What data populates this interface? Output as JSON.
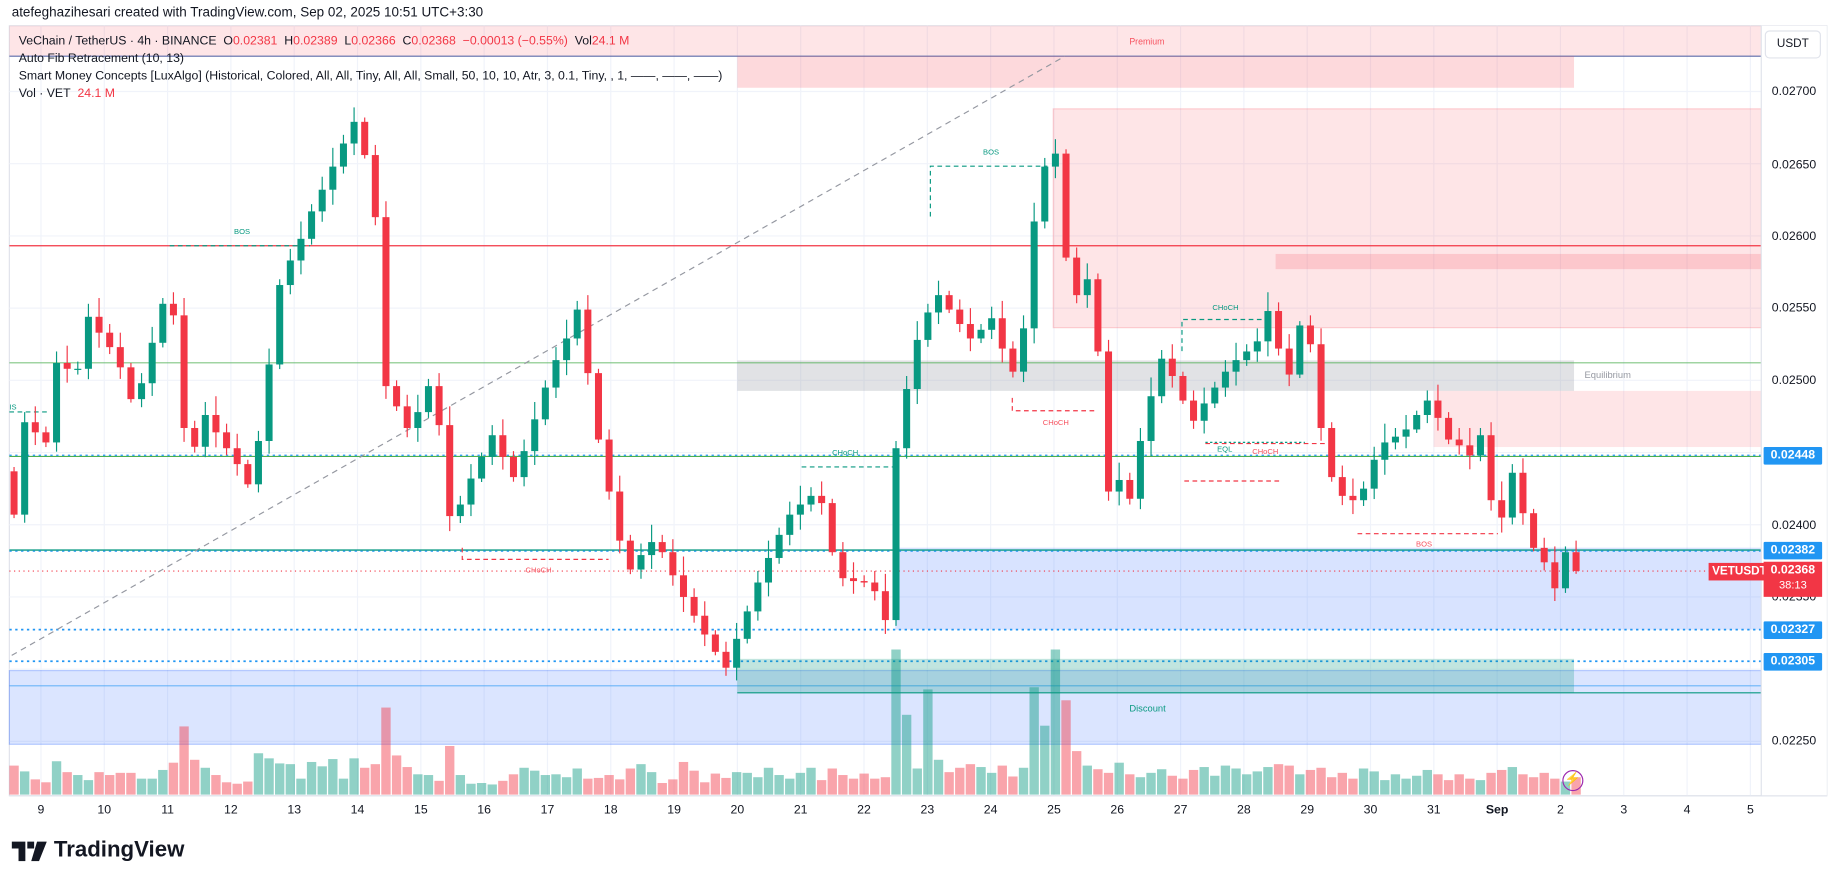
{
  "credit": "atefeghazihesari created with TradingView.com, Sep 02, 2025 10:51 UTC+3:30",
  "legend": {
    "symbol": "VeChain / TetherUS · 4h · BINANCE",
    "o_label": "O",
    "o": "0.02381",
    "h_label": "H",
    "h": "0.02389",
    "l_label": "L",
    "l": "0.02366",
    "c_label": "C",
    "c": "0.02368",
    "change": "−0.00013 (−0.55%)",
    "vol_label": "Vol",
    "vol": "24.1 M",
    "indicator1": "Auto Fib Retracement (10, 13)",
    "indicator2": "Smart Money Concepts [LuxAlgo] (Historical, Colored, All, All, Tiny, All, All, Small, 50, 10, 10, Atr, 3, 0.1, Tiny, , 1, ——, ——, ——)",
    "indicator3": "Vol · VET",
    "indicator3_value": "24.1 M"
  },
  "currency_button": "USDT",
  "annotations": {
    "premium": "Premium",
    "equilibrium": "Equilibrium",
    "discount": "Discount",
    "bos": "BOS",
    "choch": "CHoCH",
    "eql": "EQL",
    "partial_bos": "IS"
  },
  "price_axis": {
    "ticks": [
      "0.02700",
      "0.02650",
      "0.02600",
      "0.02550",
      "0.02500",
      "0.02400",
      "0.02350",
      "0.02250"
    ],
    "level_tags": [
      "0.02448",
      "0.02382",
      "0.02327",
      "0.02305"
    ],
    "symbol_tag": "VETUSDT",
    "current_price": "0.02368",
    "countdown": "38:13"
  },
  "time_axis": [
    "9",
    "10",
    "11",
    "12",
    "13",
    "14",
    "15",
    "16",
    "17",
    "18",
    "19",
    "20",
    "21",
    "22",
    "23",
    "24",
    "25",
    "26",
    "27",
    "28",
    "29",
    "30",
    "31",
    "Sep",
    "2",
    "3",
    "4",
    "5"
  ],
  "brand": "TradingView",
  "colors": {
    "up": "#089981",
    "down": "#f23645",
    "level": "#2196f3",
    "zone_premium": "#f7525f",
    "zone_discount": "#2962ff"
  },
  "chart_data": {
    "type": "candlestick",
    "title": "VeChain / TetherUS · 4h · BINANCE",
    "ylabel": "USDT",
    "ylim": [
      0.0222,
      0.0273
    ],
    "interval": "4h",
    "x_start": "Aug 9",
    "x_end": "Sep 2",
    "close": [
      0.02407,
      0.02471,
      0.02464,
      0.02457,
      0.02512,
      0.02508,
      0.02508,
      0.02544,
      0.02533,
      0.02523,
      0.02509,
      0.02487,
      0.02498,
      0.02526,
      0.02553,
      0.02545,
      0.02467,
      0.02454,
      0.02476,
      0.02464,
      0.02453,
      0.02442,
      0.02428,
      0.02458,
      0.02511,
      0.02566,
      0.02583,
      0.02598,
      0.02617,
      0.02632,
      0.02648,
      0.02664,
      0.02679,
      0.02656,
      0.02613,
      0.02496,
      0.02482,
      0.02467,
      0.02478,
      0.02496,
      0.02469,
      0.02406,
      0.02414,
      0.02432,
      0.02447,
      0.02462,
      0.02447,
      0.02433,
      0.02451,
      0.02473,
      0.02495,
      0.02514,
      0.02529,
      0.02549,
      0.02505,
      0.02459,
      0.02423,
      0.02389,
      0.02369,
      0.02379,
      0.02388,
      0.02381,
      0.02365,
      0.0235,
      0.02337,
      0.02324,
      0.02312,
      0.02301,
      0.02321,
      0.0234,
      0.0236,
      0.02377,
      0.02393,
      0.02407,
      0.02414,
      0.0242,
      0.02415,
      0.02381,
      0.02363,
      0.02361,
      0.0236,
      0.02354,
      0.02334,
      0.02453,
      0.02494,
      0.02528,
      0.02547,
      0.02559,
      0.02549,
      0.02539,
      0.02529,
      0.02535,
      0.02543,
      0.02522,
      0.02506,
      0.02536,
      0.0261,
      0.02648,
      0.02657,
      0.02585,
      0.02559,
      0.0257,
      0.0252,
      0.02423,
      0.02431,
      0.02418,
      0.02458,
      0.02489,
      0.02515,
      0.02503,
      0.02486,
      0.02472,
      0.02484,
      0.02495,
      0.02506,
      0.02514,
      0.0252,
      0.02527,
      0.02548,
      0.02522,
      0.02504,
      0.02538,
      0.02525,
      0.02467,
      0.02433,
      0.0242,
      0.02417,
      0.02425,
      0.02445,
      0.02457,
      0.02461,
      0.02466,
      0.02476,
      0.02486,
      0.02474,
      0.02459,
      0.02455,
      0.02448,
      0.02462,
      0.02417,
      0.02405,
      0.02436,
      0.02408,
      0.02384,
      0.02374,
      0.02356,
      0.02381,
      0.02368
    ],
    "last_candle": {
      "open": 0.02381,
      "high": 0.02389,
      "low": 0.02366,
      "close": 0.02368
    },
    "volume_millions": [
      40,
      32,
      21,
      17,
      46,
      31,
      27,
      20,
      31,
      27,
      30,
      30,
      22,
      22,
      34,
      44,
      94,
      48,
      37,
      27,
      17,
      15,
      18,
      57,
      50,
      43,
      42,
      22,
      45,
      39,
      49,
      22,
      50,
      37,
      42,
      120,
      54,
      38,
      28,
      27,
      19,
      67,
      27,
      15,
      16,
      14,
      19,
      28,
      37,
      33,
      27,
      28,
      24,
      36,
      22,
      23,
      27,
      21,
      36,
      42,
      31,
      16,
      21,
      45,
      33,
      17,
      29,
      23,
      31,
      30,
      24,
      37,
      27,
      22,
      30,
      37,
      20,
      36,
      27,
      22,
      29,
      22,
      24,
      200,
      110,
      36,
      145,
      48,
      31,
      37,
      42,
      38,
      30,
      40,
      25,
      37,
      148,
      95,
      200,
      130,
      60,
      40,
      35,
      30,
      44,
      28,
      24,
      30,
      35,
      26,
      22,
      34,
      38,
      26,
      40,
      36,
      28,
      32,
      38,
      42,
      40,
      28,
      34,
      37,
      24,
      30,
      22,
      36,
      32,
      20,
      28,
      22,
      26,
      34,
      28,
      20,
      28,
      22,
      20,
      30,
      34,
      38,
      28,
      24,
      30,
      22,
      18,
      24
    ],
    "levels": [
      0.02595,
      0.02512,
      0.02448,
      0.02382,
      0.02327,
      0.02305
    ],
    "grid": true
  }
}
